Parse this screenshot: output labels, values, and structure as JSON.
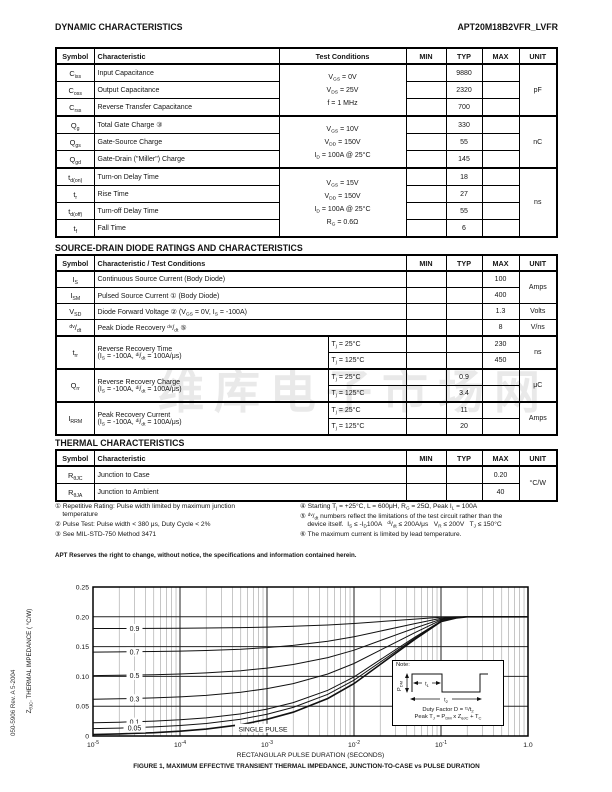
{
  "page": {
    "title_left": "DYNAMIC CHARACTERISTICS",
    "part_number": "APT20M18B2VFR_LVFR",
    "section2_title": "SOURCE-DRAIN DIODE RATINGS AND CHARACTERISTICS",
    "section3_title": "THERMAL CHARACTERISTICS",
    "side_text": "050-5906   Rev.  A    5-2004",
    "watermark": "维库电子市场网",
    "apt_notice": "APT Reserves the right to change, without notice, the specifications and information contained herein."
  },
  "dynamic_table": {
    "headers": [
      "Symbol",
      "Characteristic",
      "Test Conditions",
      "MIN",
      "TYP",
      "MAX",
      "UNIT"
    ],
    "groups": [
      {
        "cond": "V~GS~ = 0V\nV~DS~ = 25V\nf = 1 MHz",
        "unit": "pF",
        "rows": [
          {
            "sym": "C~iss~",
            "char": "Input  Capacitance",
            "typ": "9880"
          },
          {
            "sym": "C~oss~",
            "char": "Output  Capacitance",
            "typ": "2320"
          },
          {
            "sym": "C~rss~",
            "char": "Reverse  Transfer  Capacitance",
            "typ": "700"
          }
        ]
      },
      {
        "cond": "V~GS~ = 10V\nV~DD~ = 150V\nI~D~ = 100A @ 25°C",
        "unit": "nC",
        "rows": [
          {
            "sym": "Q~g~",
            "char": "Total Gate Charge ③",
            "typ": "330"
          },
          {
            "sym": "Q~gs~",
            "char": "Gate-Source  Charge",
            "typ": "55"
          },
          {
            "sym": "Q~gd~",
            "char": "Gate-Drain (\"Miller\") Charge",
            "typ": "145"
          }
        ]
      },
      {
        "cond": "V~GS~ = 15V\nV~DD~ = 150V\nI~D~ = 100A @ 25°C\nR~G~ = 0.6Ω",
        "unit": "ns",
        "rows": [
          {
            "sym": "t~d(on)~",
            "char": "Turn-on Delay Time",
            "typ": "18"
          },
          {
            "sym": "t~r~",
            "char": "Rise Time",
            "typ": "27"
          },
          {
            "sym": "t~d(off)~",
            "char": "Turn-off Delay Time",
            "typ": "55"
          },
          {
            "sym": "t~f~",
            "char": "Fall Time",
            "typ": "6"
          }
        ]
      }
    ]
  },
  "diode_table": {
    "headers": [
      "Symbol",
      "Characteristic / Test Conditions",
      "MIN",
      "TYP",
      "MAX",
      "UNIT"
    ],
    "rows": [
      {
        "sym": "I~S~",
        "char": "Continuous Source Current   (Body Diode)",
        "max": "100",
        "unit": "Amps",
        "unitspan": 2
      },
      {
        "sym": "I~SM~",
        "char": "Pulsed Source Current ① (Body Diode)",
        "max": "400"
      },
      {
        "sym": "V~SD~",
        "char": "Diode Forward Voltage ② (V~GS~ = 0V, I~S~ = -100A)",
        "max": "1.3",
        "unit": "Volts",
        "unitspan": 1
      },
      {
        "sym": "^dv^/~dt~",
        "char": "Peak Diode Recovery ^dv^/~dt~ ⑤",
        "max": "8",
        "unit": "V/ns",
        "unitspan": 1
      },
      {
        "sym": "t~rr~",
        "char": "Reverse Recovery Time",
        "char2": "(I~S~ = -100A, ^di^/~dt~ = 100A/μs)",
        "unit": "ns",
        "sub": [
          {
            "cond": "T~j~ = 25°C",
            "max": "230"
          },
          {
            "cond": "T~j~ = 125°C",
            "max": "450"
          }
        ]
      },
      {
        "sym": "Q~rr~",
        "char": "Reverse Recovery Charge",
        "char2": "(I~S~ = -100A, ^di^/~dt~ = 100A/μs)",
        "unit": "μC",
        "sub": [
          {
            "cond": "T~j~ = 25°C",
            "typ": "0.9"
          },
          {
            "cond": "T~j~ = 125°C",
            "typ": "3.4"
          }
        ]
      },
      {
        "sym": "I~RRM~",
        "char": "Peak Recovery Current",
        "char2": "(I~S~ = -100A, ^di^/~dt~ = 100A/μs)",
        "unit": "Amps",
        "sub": [
          {
            "cond": "T~j~ = 25°C",
            "typ": "11"
          },
          {
            "cond": "T~j~ = 125°C",
            "typ": "20"
          }
        ]
      }
    ]
  },
  "thermal_table": {
    "headers": [
      "Symbol",
      "Characteristic",
      "MIN",
      "TYP",
      "MAX",
      "UNIT"
    ],
    "rows": [
      {
        "sym": "R~θJC~",
        "char": "Junction to Case",
        "max": "0.20",
        "unit": "°C/W",
        "unitspan": 2
      },
      {
        "sym": "R~θJA~",
        "char": "Junction to Ambient",
        "max": "40"
      }
    ]
  },
  "footnotes": {
    "left": [
      "① Repetitive Rating: Pulse width limited by maximum junction\n    temperature",
      "② Pulse Test: Pulse width < 380 μs, Duty Cycle < 2%",
      "③ See MIL-STD-750 Method 3471"
    ],
    "right": [
      "④ Starting T~j~ = +25°C, L = 600μH, R~G~ = 25Ω, Peak I~L~ = 100A",
      "⑤ ^dv^/~dt~ numbers reflect the limitations of the test circuit rather than the\n    device itself.  I~S~ ≤ -I~D~100A   ^di^/~dt~ ≤ 200A/μs   V~R~ ≤ 200V   T~J~ ≤ 150°C",
      "⑥ The maximum current is limited by lead temperature."
    ]
  },
  "chart_data": {
    "type": "line",
    "title": "FIGURE 1, MAXIMUM EFFECTIVE TRANSIENT THERMAL IMPEDANCE, JUNCTION-TO-CASE vs PULSE DURATION",
    "xlabel": "RECTANGULAR PULSE DURATION (SECONDS)",
    "ylabel": "Z~θJC~, THERMAL IMPEDANCE ( °C/W)",
    "xscale": "log",
    "xlim": [
      1e-05,
      1.0
    ],
    "ylim": [
      0,
      0.25
    ],
    "grid": true,
    "legend_position": "labels-on-curves",
    "yticks": [
      "0.25",
      "0.20",
      "0.15",
      "0.10",
      "0.05",
      "0"
    ],
    "ytick_values": [
      0.25,
      0.2,
      0.15,
      0.1,
      0.05,
      0
    ],
    "xticks": [
      {
        "base": "10",
        "exp": "-5"
      },
      {
        "base": "10",
        "exp": "-4"
      },
      {
        "base": "10",
        "exp": "-3"
      },
      {
        "base": "10",
        "exp": "-2"
      },
      {
        "base": "10",
        "exp": "-1"
      },
      {
        "base": "1.0",
        "exp": ""
      }
    ],
    "r_theta_jc_max": 0.2,
    "single_pulse": {
      "label": "SINGLE PULSE",
      "t": [
        1e-05,
        2e-05,
        5e-05,
        0.0001,
        0.0002,
        0.0005,
        0.001,
        0.002,
        0.005,
        0.01,
        0.02,
        0.05,
        0.1,
        0.15,
        0.2,
        0.5,
        1.0
      ],
      "z": [
        0.0025,
        0.0035,
        0.0055,
        0.008,
        0.0115,
        0.019,
        0.028,
        0.04,
        0.063,
        0.088,
        0.12,
        0.162,
        0.192,
        0.198,
        0.2,
        0.2,
        0.2
      ]
    },
    "duty_factor_series": [
      {
        "label": "0.9",
        "d": 0.9,
        "z": [
          0.1803,
          0.1804,
          0.1806,
          0.1808,
          0.1812,
          0.1819,
          0.1828,
          0.184,
          0.1863,
          0.1888,
          0.192,
          0.1962,
          0.1992,
          0.1998,
          0.2,
          0.2,
          0.2
        ]
      },
      {
        "label": "0.7",
        "d": 0.7,
        "z": [
          0.1408,
          0.1411,
          0.1417,
          0.1424,
          0.1435,
          0.1457,
          0.1484,
          0.152,
          0.1589,
          0.1664,
          0.176,
          0.1886,
          0.1976,
          0.1994,
          0.2,
          0.2,
          0.2
        ]
      },
      {
        "label": "0.5",
        "d": 0.5,
        "z": [
          0.1013,
          0.1018,
          0.1028,
          0.104,
          0.1058,
          0.1095,
          0.114,
          0.12,
          0.1315,
          0.144,
          0.16,
          0.181,
          0.196,
          0.199,
          0.2,
          0.2,
          0.2
        ]
      },
      {
        "label": "0.3",
        "d": 0.3,
        "z": [
          0.0618,
          0.0625,
          0.0639,
          0.0656,
          0.0681,
          0.0733,
          0.0796,
          0.088,
          0.1041,
          0.1216,
          0.144,
          0.1734,
          0.1944,
          0.1986,
          0.2,
          0.2,
          0.2
        ]
      },
      {
        "label": "0.1",
        "d": 0.1,
        "z": [
          0.0223,
          0.0232,
          0.025,
          0.0272,
          0.0304,
          0.0371,
          0.0452,
          0.056,
          0.0767,
          0.0992,
          0.128,
          0.1658,
          0.1928,
          0.1982,
          0.2,
          0.2,
          0.2
        ]
      },
      {
        "label": "0.05",
        "d": 0.05,
        "z": [
          0.0124,
          0.0133,
          0.0152,
          0.0176,
          0.0209,
          0.0281,
          0.0366,
          0.048,
          0.0699,
          0.0936,
          0.124,
          0.1639,
          0.1924,
          0.1981,
          0.2,
          0.2,
          0.2
        ]
      }
    ],
    "note": {
      "title": "Note:",
      "pdm_label": "P~DM~",
      "t1_label": "t~1~",
      "t2_label": "t~2~",
      "duty_line": "Duty Factor  D = ^t1^/t~2~",
      "peak_line": "Peak T~J~ = P~DM~ x Z~θJC~ + T~C~"
    }
  }
}
